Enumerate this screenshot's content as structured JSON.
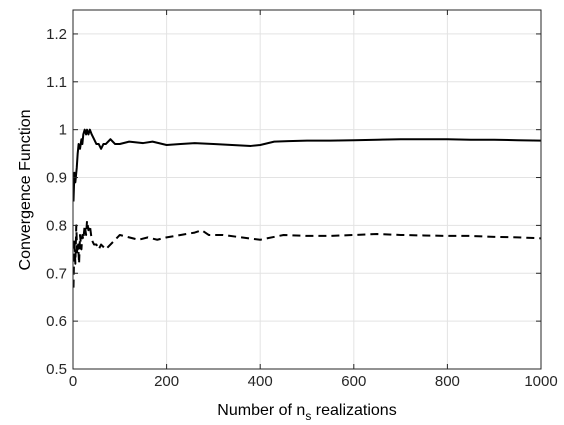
{
  "chart_data": {
    "type": "line",
    "title": "",
    "xlabel_parts": {
      "pre": "Number of n",
      "sub": "s",
      "post": " realizations"
    },
    "ylabel": "Convergence Function",
    "xlim": [
      0,
      1000
    ],
    "ylim": [
      0.5,
      1.25
    ],
    "xticks": [
      0,
      200,
      400,
      600,
      800,
      1000
    ],
    "yticks": [
      0.5,
      0.6,
      0.7,
      0.8,
      0.9,
      1,
      1.1,
      1.2
    ],
    "grid": true,
    "legend": "none",
    "series": [
      {
        "style": "solid",
        "color": "#000000",
        "x": [
          1,
          3,
          5,
          8,
          10,
          12,
          15,
          18,
          20,
          22,
          25,
          28,
          30,
          33,
          36,
          40,
          45,
          50,
          55,
          60,
          65,
          70,
          80,
          90,
          100,
          120,
          150,
          170,
          200,
          230,
          260,
          300,
          340,
          380,
          400,
          430,
          460,
          500,
          550,
          600,
          650,
          700,
          750,
          800,
          850,
          900,
          950,
          1000
        ],
        "y": [
          0.85,
          0.91,
          0.89,
          0.92,
          0.95,
          0.97,
          0.96,
          0.98,
          0.97,
          0.99,
          1.0,
          0.99,
          1.0,
          0.99,
          1.0,
          0.99,
          0.98,
          0.97,
          0.97,
          0.96,
          0.97,
          0.97,
          0.98,
          0.97,
          0.97,
          0.975,
          0.972,
          0.975,
          0.968,
          0.97,
          0.972,
          0.97,
          0.968,
          0.966,
          0.968,
          0.975,
          0.976,
          0.977,
          0.977,
          0.978,
          0.979,
          0.98,
          0.98,
          0.98,
          0.979,
          0.979,
          0.978,
          0.977
        ]
      },
      {
        "style": "dashed",
        "color": "#000000",
        "x": [
          1,
          3,
          5,
          7,
          9,
          11,
          13,
          15,
          18,
          20,
          22,
          25,
          28,
          30,
          33,
          36,
          40,
          45,
          50,
          55,
          60,
          70,
          80,
          90,
          100,
          120,
          140,
          160,
          180,
          200,
          230,
          260,
          275,
          290,
          320,
          360,
          400,
          450,
          500,
          550,
          600,
          650,
          700,
          750,
          800,
          850,
          900,
          950,
          1000
        ],
        "y": [
          0.67,
          0.77,
          0.72,
          0.8,
          0.74,
          0.76,
          0.72,
          0.78,
          0.75,
          0.78,
          0.77,
          0.8,
          0.78,
          0.81,
          0.79,
          0.8,
          0.77,
          0.76,
          0.76,
          0.75,
          0.76,
          0.75,
          0.76,
          0.77,
          0.78,
          0.775,
          0.77,
          0.775,
          0.77,
          0.775,
          0.78,
          0.785,
          0.79,
          0.78,
          0.78,
          0.775,
          0.77,
          0.78,
          0.778,
          0.778,
          0.78,
          0.782,
          0.78,
          0.779,
          0.778,
          0.778,
          0.776,
          0.775,
          0.773
        ]
      }
    ]
  }
}
